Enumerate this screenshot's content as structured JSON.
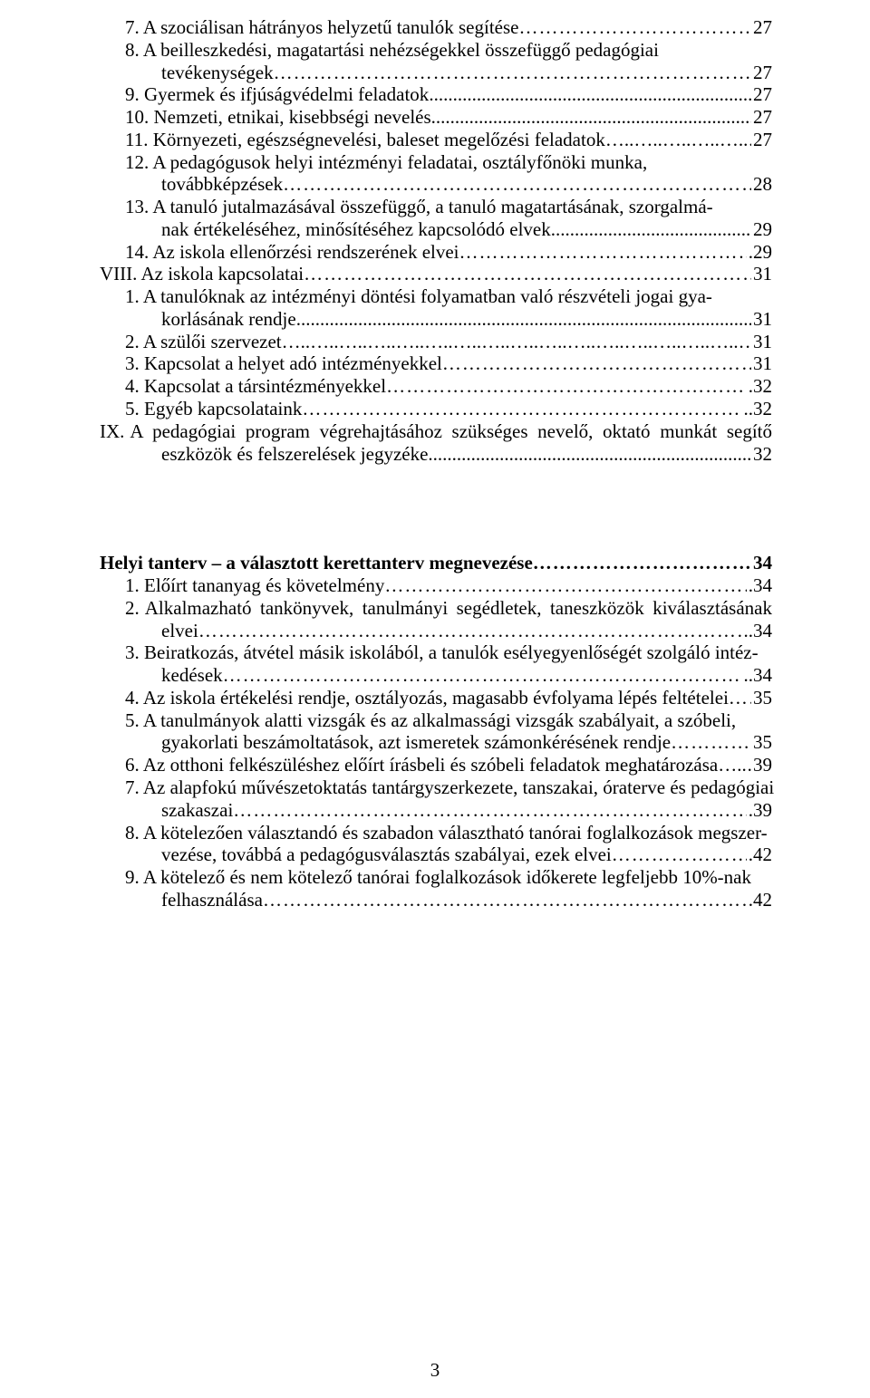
{
  "toc1": [
    {
      "indent": 1,
      "label": "7.",
      "text": "A szociálisan hátrányos helyzetű tanulók segítése",
      "leader": "ell",
      "page": "27"
    },
    {
      "indent": 1,
      "label": "8.",
      "text": "A beilleszkedési, magatartási nehézségekkel összefüggő pedagógiai",
      "nowrapPage": true
    },
    {
      "indent": 2,
      "label": "",
      "text": "tevékenységek",
      "leader": "ell",
      "page": "27"
    },
    {
      "indent": 1,
      "label": "9.",
      "text": "Gyermek és ifjúságvédelmi feladatok",
      "leader": "dots",
      "page": "27"
    },
    {
      "indent": 1,
      "label": "10.",
      "text": "Nemzeti, etnikai, kisebbségi nevelés",
      "leader": "dots",
      "page": "27"
    },
    {
      "indent": 1,
      "label": "11.",
      "text": "Környezeti, egészségnevelési, baleset megelőzési feladatok",
      "leader": "dotsp",
      "page": "27"
    },
    {
      "indent": 1,
      "label": "12.",
      "text": "A pedagógusok helyi intézményi feladatai, osztályfőnöki munka,",
      "nowrapPage": true
    },
    {
      "indent": 2,
      "label": "",
      "text": "továbbképzések",
      "leader": "ell",
      "page": "28"
    },
    {
      "indent": 1,
      "label": "13.",
      "text": "A tanuló jutalmazásával összefüggő, a tanuló magatartásának, szorgalmá-",
      "nowrapPage": true
    },
    {
      "indent": 2,
      "label": "",
      "text": "nak értékeléséhez, minősítéséhez kapcsolódó elvek",
      "leader": "dots",
      "page": "29"
    },
    {
      "indent": 1,
      "label": "14.",
      "text": "Az iskola ellenőrzési rendszerének elvei",
      "leader": "ell",
      "pagePrefix": ".",
      "page": "29"
    },
    {
      "indent": 0,
      "label": "VIII.",
      "text": "Az iskola kapcsolatai",
      "leader": "ell",
      "page": "31"
    },
    {
      "indent": 1,
      "label": "1.",
      "text": "A tanulóknak az intézményi döntési folyamatban való részvételi jogai gya-",
      "nowrapPage": true
    },
    {
      "indent": 2,
      "label": "",
      "text": "korlásának rendje",
      "leader": "dots",
      "page": "31"
    },
    {
      "indent": 1,
      "label": "2.",
      "text": "A szülői szervezet",
      "leader": "dotsp",
      "page": "31"
    },
    {
      "indent": 1,
      "label": "3.",
      "text": "Kapcsolat a helyet adó intézményekkel",
      "leader": "ell",
      "page": "31"
    },
    {
      "indent": 1,
      "label": "4.",
      "text": "Kapcsolat a társintézményekkel",
      "leader": "ell",
      "pagePrefix": ".",
      "page": "32"
    },
    {
      "indent": 1,
      "label": "5.",
      "text": "Egyéb kapcsolataink",
      "leader": "ell",
      "pagePrefix": "..",
      "page": "32"
    }
  ],
  "toc1_ix": {
    "label": "IX.",
    "line1": "A pedagógiai program végrehajtásához szükséges nevelő, oktató munkát segítő",
    "line2_text": "eszközök és felszerelések jegyzéke",
    "leader": "dots",
    "page": "32"
  },
  "heading2": "Helyi tanterv – a választott kerettanterv megnevezése",
  "heading2_page": "34",
  "toc2": [
    {
      "indent": 1,
      "label": "1.",
      "text": "Előírt tananyag és követelmény",
      "leader": "ell",
      "pagePrefix": ".",
      "page": "34"
    }
  ],
  "toc2_item2": {
    "label": "2.",
    "line1": "Alkalmazható tankönyvek, tanulmányi segédletek, taneszközök kiválasztásának",
    "line2_text": "elvei",
    "leader": "ell",
    "pagePrefix": "..",
    "page": "34"
  },
  "toc2_item3": {
    "label": "3.",
    "line1": "Beiratkozás, átvétel másik iskolából, a tanulók esélyegyenlőségét szolgáló intéz-",
    "line2_text": "kedések",
    "leader": "ell",
    "pagePrefix": "..",
    "page": "34"
  },
  "toc2b": [
    {
      "indent": 1,
      "label": "4.",
      "text": "Az iskola értékelési rendje, osztályozás, magasabb évfolyama lépés feltételei",
      "leader": "ell",
      "page": "35"
    },
    {
      "indent": 1,
      "label": "5.",
      "text": "A tanulmányok alatti vizsgák és az alkalmassági vizsgák szabályait, a szóbeli,",
      "nowrapPage": true
    },
    {
      "indent": 2,
      "label": "",
      "text": "gyakorlati beszámoltatások, azt ismeretek számonkérésének rendje",
      "leader": "ell",
      "page": "35"
    },
    {
      "indent": 1,
      "label": "6.",
      "text": "Az otthoni felkészüléshez előírt írásbeli és szóbeli feladatok meghatározása",
      "leader": "dotsp",
      "page": "39"
    },
    {
      "indent": 1,
      "label": "7.",
      "text": "Az alapfokú művészetoktatás tantárgyszerkezete, tanszakai, óraterve és pedagógiai",
      "nowrapPage": true
    },
    {
      "indent": 2,
      "label": "",
      "text": "szakaszai",
      "leader": "ell",
      "pagePrefix": ".",
      "page": "39"
    },
    {
      "indent": 1,
      "label": "8.",
      "text": "A kötelezően választandó és szabadon választható tanórai foglalkozások megszer-",
      "nowrapPage": true
    },
    {
      "indent": 2,
      "label": "",
      "text": "vezése, továbbá a pedagógusválasztás szabályai, ezek elvei",
      "leader": "ell",
      "pagePrefix": ".",
      "page": "42"
    },
    {
      "indent": 1,
      "label": "9.",
      "text": "A kötelező és nem kötelező tanórai foglalkozások időkerete legfeljebb 10%-nak",
      "nowrapPage": true
    },
    {
      "indent": 2,
      "label": "",
      "text": "felhasználása",
      "leader": "ell",
      "pagePrefix": ".",
      "page": "42"
    }
  ],
  "footer": "3"
}
